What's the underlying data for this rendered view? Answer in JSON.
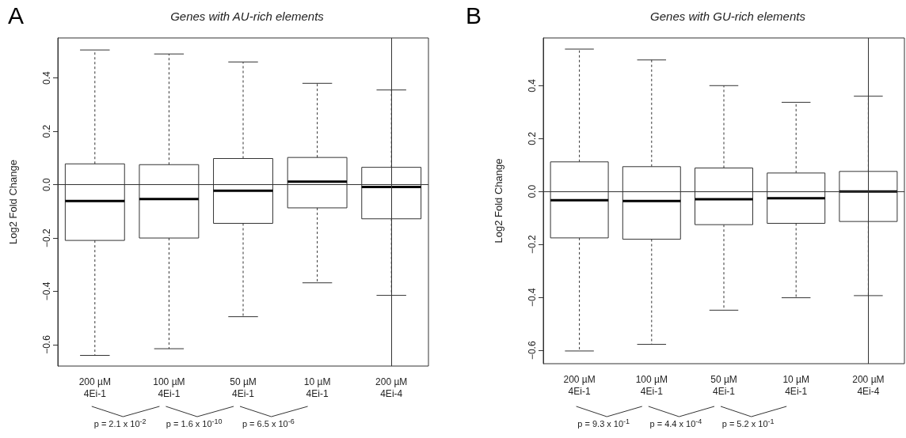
{
  "chart_data": [
    {
      "type": "box",
      "title": "Genes with AU-rich elements",
      "ylabel": "Log2 Fold Change",
      "categories": [
        "200 µM\n4Ei-1",
        "100 µM\n4Ei-1",
        "50 µM\n4Ei-1",
        "10 µM\n4Ei-1",
        "200 µM\n4Ei-4"
      ],
      "boxes": [
        {
          "low": -0.64,
          "q1": -0.209,
          "median": -0.061,
          "q3": 0.078,
          "high": 0.505
        },
        {
          "low": -0.615,
          "q1": -0.2,
          "median": -0.054,
          "q3": 0.075,
          "high": 0.49
        },
        {
          "low": -0.495,
          "q1": -0.145,
          "median": -0.023,
          "q3": 0.098,
          "high": 0.46
        },
        {
          "low": -0.368,
          "q1": -0.087,
          "median": 0.011,
          "q3": 0.102,
          "high": 0.38
        },
        {
          "low": -0.415,
          "q1": -0.128,
          "median": -0.009,
          "q3": 0.065,
          "high": 0.355
        }
      ],
      "ylim": [
        -0.68,
        0.55
      ],
      "yticks": [
        -0.6,
        -0.4,
        -0.2,
        {
          "value": 0,
          "label": "0.0"
        },
        0.2,
        0.4
      ],
      "ref_lines": [
        {
          "axis": "y",
          "value": 0
        }
      ],
      "annotations": [
        "A",
        "p = 2.1 x 10$^{-2}$",
        "p = 1.6 x 10$^{-10}$",
        "p = 6.5 x 10$^{-6}$"
      ]
    },
    {
      "type": "box",
      "title": "Genes with GU-rich elements",
      "ylabel": "Log2 Fold Change",
      "categories": [
        "200 µM\n4Ei-1",
        "100 µM\n4Ei-1",
        "50 µM\n4Ei-1",
        "10 µM\n4Ei-1",
        "200 µM\n4Ei-4"
      ],
      "boxes": [
        {
          "low": -0.602,
          "q1": -0.175,
          "median": -0.033,
          "q3": 0.112,
          "high": 0.538
        },
        {
          "low": -0.577,
          "q1": -0.18,
          "median": -0.036,
          "q3": 0.094,
          "high": 0.497
        },
        {
          "low": -0.448,
          "q1": -0.125,
          "median": -0.029,
          "q3": 0.089,
          "high": 0.4
        },
        {
          "low": -0.401,
          "q1": -0.12,
          "median": -0.025,
          "q3": 0.07,
          "high": 0.337
        },
        {
          "low": -0.393,
          "q1": -0.113,
          "median": 0.0,
          "q3": 0.076,
          "high": 0.36
        }
      ],
      "ylim": [
        -0.65,
        0.58
      ],
      "yticks": [
        -0.6,
        -0.4,
        -0.2,
        {
          "value": 0,
          "label": "0.0"
        },
        0.2,
        0.4
      ],
      "ref_lines": [
        {
          "axis": "y",
          "value": 0
        }
      ],
      "annotations": [
        "B",
        "p = 9.3 x 10$^{-1}$",
        "p = 4.4 x 10$^{-4}$",
        "p = 5.2 x 10$^{-1}$"
      ]
    }
  ]
}
